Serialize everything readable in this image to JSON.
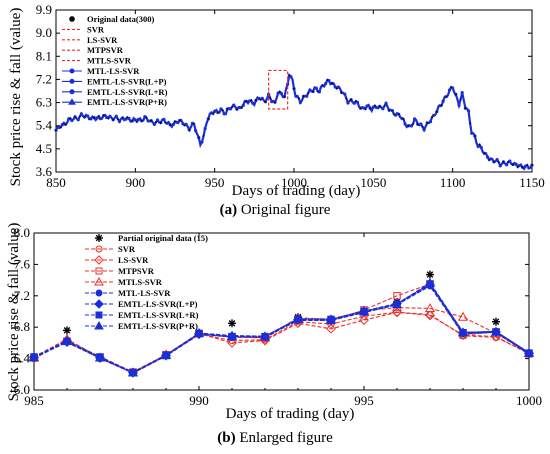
{
  "colors": {
    "red": "#e8312a",
    "blue": "#1a2fd6",
    "black": "#000000"
  },
  "figure_a": {
    "letter": "(a)",
    "caption": " Original figure"
  },
  "figure_b": {
    "letter": "(b)",
    "caption": " Enlarged figure"
  },
  "chart_data": [
    {
      "type": "line",
      "xlabel": "Days of trading (day)",
      "ylabel": "Stock price rise & fall (value)",
      "xlim": [
        850,
        1150
      ],
      "ylim": [
        3.6,
        9.9
      ],
      "xticks": [
        850,
        900,
        950,
        1000,
        1050,
        1100,
        1150
      ],
      "yticks": [
        "3.6",
        "4.5",
        "5.4",
        "6.3",
        "7.2",
        "8.1",
        "9.0",
        "9.9"
      ],
      "legend_position": "top-left",
      "highlight_box": {
        "x": [
          984,
          996
        ],
        "y": [
          6.05,
          7.55
        ]
      },
      "legend": [
        "Original data(300)",
        "SVR",
        "LS-SVR",
        "MTPSVR",
        "MTLS-SVR",
        "MTL-LS-SVR",
        "EMTL-LS-SVR(L+P)",
        "EMTL-LS-SVR(L+R)",
        "EMTL-LS-SVR(P+R)"
      ],
      "series_anchor": {
        "x": [
          850,
          853,
          856,
          859,
          862,
          866,
          870,
          874,
          878,
          882,
          886,
          890,
          894,
          898,
          902,
          906,
          910,
          914,
          918,
          922,
          926,
          930,
          934,
          937,
          939,
          941,
          943,
          945,
          948,
          951,
          954,
          957,
          960,
          963,
          966,
          969,
          972,
          975,
          978,
          981,
          984,
          986,
          988,
          990,
          992,
          994,
          996,
          997,
          999,
          1001,
          1004,
          1007,
          1010,
          1013,
          1016,
          1019,
          1022,
          1025,
          1028,
          1031,
          1034,
          1037,
          1040,
          1043,
          1046,
          1049,
          1052,
          1055,
          1058,
          1061,
          1064,
          1067,
          1070,
          1073,
          1076,
          1079,
          1082,
          1085,
          1088,
          1091,
          1094,
          1097,
          1100,
          1102,
          1104,
          1106,
          1108,
          1110,
          1112,
          1114,
          1116,
          1118,
          1120,
          1122,
          1124,
          1127,
          1130,
          1133,
          1136,
          1139,
          1142,
          1145,
          1148,
          1150
        ],
        "y": [
          5.2,
          5.45,
          5.5,
          5.6,
          5.7,
          5.8,
          5.7,
          5.75,
          5.65,
          5.8,
          5.7,
          5.6,
          5.75,
          5.55,
          5.65,
          5.7,
          5.5,
          5.6,
          5.55,
          5.45,
          5.55,
          5.5,
          5.35,
          5.45,
          5.0,
          4.7,
          5.0,
          5.6,
          5.85,
          5.95,
          6.05,
          5.85,
          6.1,
          6.2,
          6.05,
          6.25,
          6.4,
          6.3,
          6.45,
          6.35,
          6.6,
          6.4,
          6.2,
          6.7,
          6.65,
          6.6,
          7.0,
          7.4,
          7.1,
          6.6,
          6.4,
          6.5,
          6.7,
          6.9,
          6.75,
          6.95,
          7.2,
          7.0,
          6.8,
          6.7,
          6.4,
          6.3,
          6.25,
          6.1,
          6.15,
          6.0,
          6.2,
          6.1,
          6.15,
          6.0,
          5.9,
          5.75,
          5.45,
          5.4,
          5.6,
          5.4,
          5.35,
          5.55,
          5.7,
          6.1,
          6.4,
          6.6,
          6.9,
          6.6,
          6.3,
          6.6,
          6.1,
          5.9,
          5.2,
          5.0,
          4.6,
          4.5,
          4.3,
          4.25,
          4.1,
          4.0,
          3.9,
          4.0,
          3.95,
          3.85,
          3.9,
          3.8,
          3.75,
          3.8
        ]
      }
    },
    {
      "type": "line",
      "xlabel": "Days of trading (day)",
      "ylabel": "Stock price rise & fall (value)",
      "xlim": [
        985,
        1000
      ],
      "ylim": [
        6.0,
        8.0
      ],
      "xticks": [
        985,
        990,
        995,
        1000
      ],
      "yticks": [
        "6.0",
        "6.4",
        "6.8",
        "7.2",
        "7.6",
        "8.0"
      ],
      "legend_position": "top-left",
      "x": [
        985,
        986,
        987,
        988,
        989,
        990,
        991,
        992,
        993,
        994,
        995,
        996,
        997,
        998,
        999,
        1000
      ],
      "series": [
        {
          "name": "Partial original data (15)",
          "marker": "asterisk",
          "color": "black",
          "x": [
            986,
            988,
            990,
            991,
            993,
            995,
            996,
            997,
            999
          ],
          "values": [
            6.76,
            6.22,
            6.73,
            6.85,
            6.93,
            7.01,
            7.12,
            7.47,
            6.87
          ]
        },
        {
          "name": "SVR",
          "marker": "circle-open",
          "color": "red",
          "dash": true,
          "values": [
            6.4,
            6.63,
            6.4,
            6.22,
            6.44,
            6.71,
            6.63,
            6.64,
            6.87,
            6.84,
            6.94,
            6.99,
            6.96,
            6.69,
            6.67,
            6.47
          ]
        },
        {
          "name": "LS-SVR",
          "marker": "diamond-open",
          "color": "red",
          "dash": true,
          "values": [
            6.41,
            6.63,
            6.41,
            6.22,
            6.44,
            6.72,
            6.6,
            6.63,
            6.85,
            6.78,
            6.89,
            6.99,
            6.95,
            6.7,
            6.68,
            6.46
          ]
        },
        {
          "name": "MTPSVR",
          "marker": "square-open",
          "color": "red",
          "dash": true,
          "values": [
            6.42,
            6.62,
            6.42,
            6.23,
            6.45,
            6.72,
            6.68,
            6.66,
            6.9,
            6.88,
            7.02,
            7.2,
            7.35,
            6.7,
            6.74,
            6.46
          ]
        },
        {
          "name": "MTLS-SVR",
          "marker": "triangle-open",
          "color": "red",
          "dash": true,
          "values": [
            6.42,
            6.65,
            6.41,
            6.22,
            6.45,
            6.72,
            6.67,
            6.67,
            6.92,
            6.9,
            7.01,
            7.05,
            7.04,
            6.93,
            6.72,
            6.47
          ]
        },
        {
          "name": "MTL-LS-SVR",
          "marker": "circle",
          "color": "blue",
          "dash": true,
          "values": [
            6.41,
            6.62,
            6.41,
            6.22,
            6.44,
            6.72,
            6.68,
            6.68,
            6.89,
            6.89,
            6.99,
            7.09,
            7.33,
            6.72,
            6.74,
            6.46
          ]
        },
        {
          "name": "EMTL-LS-SVR(L+P)",
          "marker": "diamond",
          "color": "blue",
          "dash": true,
          "values": [
            6.42,
            6.61,
            6.41,
            6.22,
            6.44,
            6.71,
            6.68,
            6.68,
            6.9,
            6.89,
            7.0,
            7.1,
            7.34,
            6.73,
            6.74,
            6.47
          ]
        },
        {
          "name": "EMTL-LS-SVR(L+R)",
          "marker": "square",
          "color": "blue",
          "dash": true,
          "values": [
            6.42,
            6.62,
            6.42,
            6.22,
            6.44,
            6.72,
            6.68,
            6.68,
            6.9,
            6.9,
            7.0,
            7.09,
            7.35,
            6.73,
            6.74,
            6.47
          ]
        },
        {
          "name": "EMTL-LS-SVR(P+R)",
          "marker": "triangle",
          "color": "blue",
          "dash": true,
          "values": [
            6.41,
            6.62,
            6.41,
            6.22,
            6.44,
            6.72,
            6.69,
            6.68,
            6.9,
            6.89,
            7.0,
            7.09,
            7.36,
            6.73,
            6.74,
            6.47
          ]
        }
      ]
    }
  ]
}
